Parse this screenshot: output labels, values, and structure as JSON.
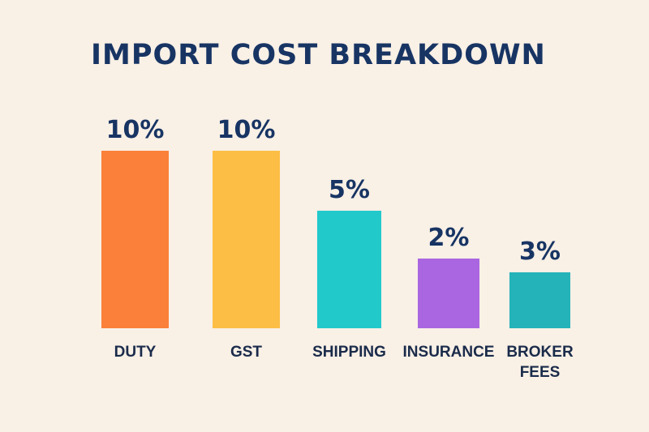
{
  "chart_data": {
    "type": "bar",
    "title": "IMPORT COST BREAKDOWN",
    "categories": [
      "DUTY",
      "GST",
      "SHIPPING",
      "INSURANCE",
      "BROKER FEES"
    ],
    "category_lines": [
      [
        "DUTY"
      ],
      [
        "GST"
      ],
      [
        "SHIPPING"
      ],
      [
        "INSURANCE"
      ],
      [
        "BROKER",
        "FEES"
      ]
    ],
    "values": [
      10,
      10,
      5,
      2,
      3
    ],
    "value_labels": [
      "10%",
      "10%",
      "5%",
      "2%",
      "3%"
    ],
    "colors": [
      "#fb803a",
      "#fcbe45",
      "#22c9cb",
      "#aa66e0",
      "#24b3b9"
    ],
    "xlabel": "",
    "ylabel": "",
    "unit": "%",
    "grid": false,
    "legend": "none"
  }
}
